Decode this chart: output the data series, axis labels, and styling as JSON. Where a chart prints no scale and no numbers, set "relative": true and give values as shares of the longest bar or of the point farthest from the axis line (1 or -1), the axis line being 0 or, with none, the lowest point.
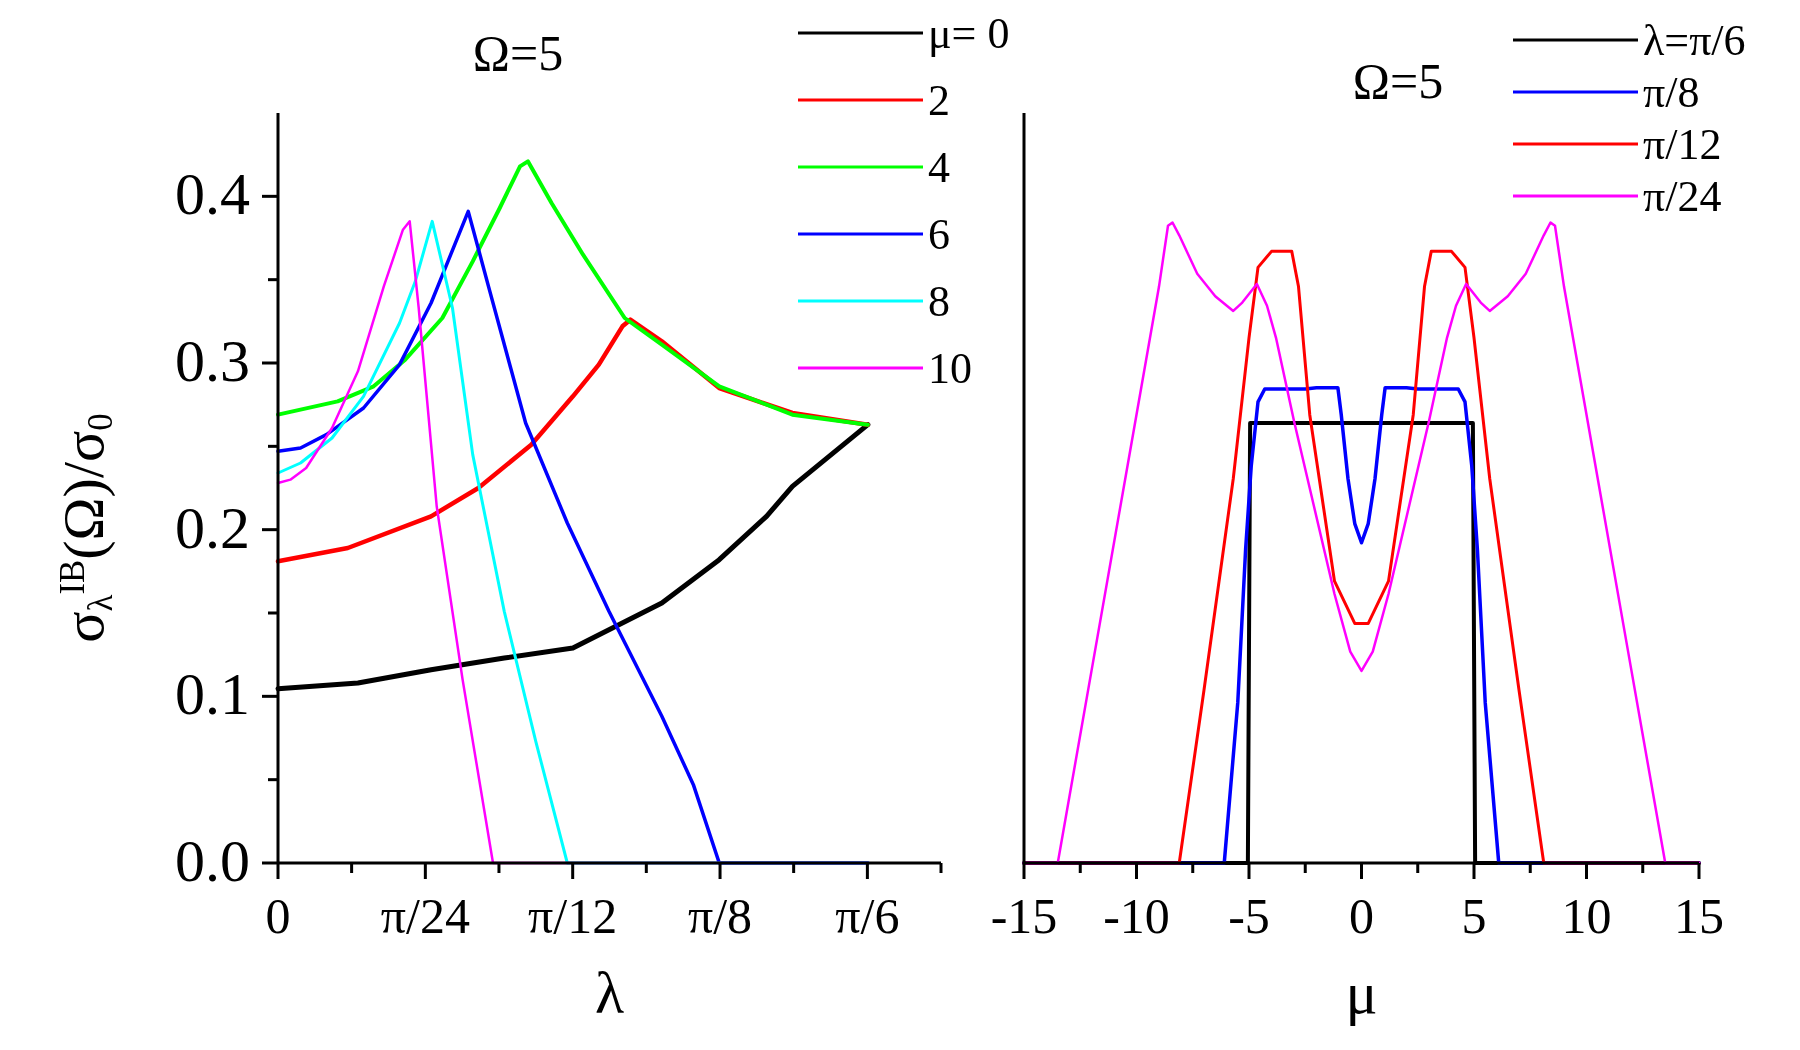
{
  "chart_data": [
    {
      "type": "line",
      "title": "Ω=5",
      "xlabel": "λ",
      "ylabel": "σ$_{λ}$$^{IB}$(Ω)/σ$_{0}$",
      "xlim": [
        0,
        0.589
      ],
      "ylim": [
        0,
        0.45
      ],
      "xticks": [
        {
          "value": 0,
          "label": "0"
        },
        {
          "value": 0.0654,
          "label": null
        },
        {
          "value": 0.1309,
          "label": "π/24"
        },
        {
          "value": 0.1963,
          "label": null
        },
        {
          "value": 0.2618,
          "label": "π/12"
        },
        {
          "value": 0.3272,
          "label": null
        },
        {
          "value": 0.3927,
          "label": "π/8"
        },
        {
          "value": 0.4581,
          "label": null
        },
        {
          "value": 0.5236,
          "label": "π/6"
        },
        {
          "value": 0.589,
          "label": null
        }
      ],
      "yticks": [
        {
          "value": 0,
          "label": "0.0"
        },
        {
          "value": 0.05,
          "label": null
        },
        {
          "value": 0.1,
          "label": "0.1"
        },
        {
          "value": 0.15,
          "label": null
        },
        {
          "value": 0.2,
          "label": "0.2"
        },
        {
          "value": 0.25,
          "label": null
        },
        {
          "value": 0.3,
          "label": "0.3"
        },
        {
          "value": 0.35,
          "label": null
        },
        {
          "value": 0.4,
          "label": "0.4"
        }
      ],
      "grid": false,
      "legend": "top right",
      "line_style": "solid",
      "marker": "none",
      "series": [
        {
          "name": "μ= 0",
          "color": "#000000",
          "x": [
            0,
            0.071,
            0.136,
            0.201,
            0.262,
            0.341,
            0.392,
            0.434,
            0.457,
            0.524
          ],
          "values": [
            0.1046,
            0.108,
            0.116,
            0.123,
            0.129,
            0.156,
            0.182,
            0.208,
            0.226,
            0.263
          ]
        },
        {
          "name": "2",
          "color": "#ff0000",
          "x": [
            0,
            0.062,
            0.136,
            0.178,
            0.225,
            0.262,
            0.285,
            0.306,
            0.313,
            0.341,
            0.392,
            0.457,
            0.524
          ],
          "values": [
            0.181,
            0.189,
            0.208,
            0.225,
            0.251,
            0.28,
            0.299,
            0.322,
            0.326,
            0.313,
            0.285,
            0.27,
            0.263
          ]
        },
        {
          "name": "4",
          "color": "#00ff00",
          "x": [
            0,
            0.053,
            0.085,
            0.113,
            0.146,
            0.173,
            0.197,
            0.215,
            0.222,
            0.243,
            0.271,
            0.308,
            0.341,
            0.392,
            0.457,
            0.524
          ],
          "values": [
            0.269,
            0.277,
            0.286,
            0.302,
            0.327,
            0.361,
            0.393,
            0.418,
            0.421,
            0.396,
            0.365,
            0.327,
            0.311,
            0.286,
            0.269,
            0.263
          ]
        },
        {
          "name": "6",
          "color": "#0000ff",
          "x": [
            0,
            0.02,
            0.043,
            0.076,
            0.108,
            0.136,
            0.169,
            0.187,
            0.22,
            0.257,
            0.294,
            0.341,
            0.369,
            0.392,
            0.524
          ],
          "values": [
            0.247,
            0.249,
            0.257,
            0.273,
            0.299,
            0.336,
            0.391,
            0.346,
            0.264,
            0.204,
            0.151,
            0.088,
            0.047,
            0,
            0
          ]
        },
        {
          "name": "8",
          "color": "#00ffff",
          "x": [
            0,
            0.02,
            0.048,
            0.076,
            0.108,
            0.122,
            0.137,
            0.155,
            0.173,
            0.201,
            0.229,
            0.257,
            0.524
          ],
          "values": [
            0.234,
            0.24,
            0.255,
            0.28,
            0.324,
            0.349,
            0.385,
            0.333,
            0.245,
            0.151,
            0.073,
            0,
            0
          ]
        },
        {
          "name": "10",
          "color": "#ff00ff",
          "x": [
            0,
            0.011,
            0.025,
            0.048,
            0.071,
            0.094,
            0.111,
            0.117,
            0.125,
            0.141,
            0.164,
            0.191,
            0.524
          ],
          "values": [
            0.228,
            0.23,
            0.237,
            0.261,
            0.295,
            0.346,
            0.38,
            0.385,
            0.333,
            0.214,
            0.11,
            0,
            0
          ]
        }
      ]
    },
    {
      "type": "line",
      "title": "Ω=5",
      "xlabel": "μ",
      "relative": true,
      "xlim": [
        -15,
        15
      ],
      "xticks": [
        -15,
        {
          "value": -12.5,
          "label": null
        },
        -10,
        {
          "value": -7.5,
          "label": null
        },
        -5,
        {
          "value": -2.5,
          "label": null
        },
        0,
        {
          "value": 2.5,
          "label": null
        },
        5,
        {
          "value": 7.5,
          "label": null
        },
        10,
        {
          "value": 12.5,
          "label": null
        },
        15
      ],
      "grid": false,
      "legend": "top right",
      "line_style": "solid",
      "marker": "none",
      "series": [
        {
          "name": "λ=π/6",
          "color": "#000000",
          "x": [
            -15,
            -5.05,
            -4.95,
            4.95,
            5.05,
            15
          ],
          "values": [
            0,
            0,
            0.687,
            0.687,
            0,
            0
          ]
        },
        {
          "name": "π/8",
          "color": "#0000ff",
          "x": [
            -15,
            -6.1,
            -5.5,
            -5.15,
            -4.9,
            -4.6,
            -4.3,
            -2.5,
            -2,
            -1.05,
            -0.9,
            -0.6,
            -0.3,
            0,
            0.3,
            0.6,
            0.9,
            1.05,
            2,
            2.5,
            4.3,
            4.6,
            4.9,
            5.15,
            5.5,
            6.1,
            15
          ],
          "values": [
            0,
            0,
            0.25,
            0.49,
            0.62,
            0.72,
            0.74,
            0.74,
            0.742,
            0.742,
            0.7,
            0.6,
            0.53,
            0.5,
            0.53,
            0.6,
            0.7,
            0.742,
            0.742,
            0.74,
            0.74,
            0.72,
            0.62,
            0.49,
            0.25,
            0,
            0
          ]
        },
        {
          "name": "π/12",
          "color": "#ff0000",
          "x": [
            -15,
            -8.1,
            -7,
            -5.7,
            -5,
            -4.6,
            -4,
            -3.1,
            -2.8,
            -2.3,
            -1.2,
            -0.3,
            0,
            0.3,
            1.2,
            2.3,
            2.8,
            3.1,
            4,
            4.6,
            5,
            5.7,
            7,
            8.1,
            15
          ],
          "values": [
            0,
            0,
            0.27,
            0.6,
            0.82,
            0.93,
            0.955,
            0.955,
            0.9,
            0.7,
            0.44,
            0.374,
            0.374,
            0.374,
            0.44,
            0.7,
            0.9,
            0.955,
            0.955,
            0.93,
            0.82,
            0.6,
            0.27,
            0,
            0
          ]
        },
        {
          "name": "π/24",
          "color": "#ff00ff",
          "x": [
            -15,
            -13.5,
            -12,
            -10.5,
            -9,
            -8.6,
            -8.4,
            -8.1,
            -7.3,
            -6.5,
            -5.7,
            -5.3,
            -4.65,
            -4.2,
            -3.8,
            -3,
            -2.1,
            -1.2,
            -0.5,
            0,
            0.5,
            1.2,
            2.1,
            3,
            3.8,
            4.2,
            4.65,
            5.3,
            5.7,
            6.5,
            7.3,
            8.1,
            8.4,
            8.6,
            9,
            10.5,
            12,
            13.5,
            15
          ],
          "values": [
            0,
            0,
            0.3,
            0.6,
            0.9,
            0.995,
            1,
            0.98,
            0.92,
            0.885,
            0.862,
            0.875,
            0.904,
            0.87,
            0.82,
            0.69,
            0.555,
            0.42,
            0.33,
            0.3,
            0.33,
            0.42,
            0.555,
            0.69,
            0.82,
            0.87,
            0.904,
            0.875,
            0.862,
            0.885,
            0.92,
            0.98,
            1,
            0.995,
            0.9,
            0.6,
            0.3,
            0,
            0
          ]
        }
      ]
    }
  ]
}
